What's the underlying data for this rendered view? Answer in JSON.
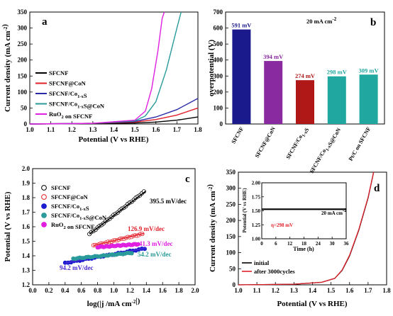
{
  "chart_data": [
    {
      "panel": "a",
      "type": "line",
      "xlabel": "Potential (V vs RHE)",
      "ylabel": "Current density (mA cm-2)",
      "xlim": [
        1.0,
        1.8
      ],
      "ylim": [
        0,
        350
      ],
      "xticks": [
        "1.0",
        "1.1",
        "1.2",
        "1.3",
        "1.4",
        "1.5",
        "1.6",
        "1.7",
        "1.8"
      ],
      "yticks": [
        "0",
        "50",
        "100",
        "150",
        "200",
        "250",
        "300",
        "350"
      ],
      "legend": "bottom-left",
      "series": [
        {
          "name": "SFCNF",
          "color": "#000000",
          "x": [
            1.0,
            1.3,
            1.5,
            1.6,
            1.7,
            1.8
          ],
          "y": [
            0,
            1,
            3,
            6,
            12,
            22
          ]
        },
        {
          "name": "SFCNF@CoN",
          "color": "#e0202a",
          "x": [
            1.0,
            1.3,
            1.5,
            1.6,
            1.7,
            1.8
          ],
          "y": [
            0,
            2,
            6,
            14,
            28,
            50
          ]
        },
        {
          "name": "SFCNF/Co1-xS",
          "color": "#2a2aa8",
          "x": [
            1.0,
            1.3,
            1.5,
            1.6,
            1.7,
            1.8
          ],
          "y": [
            0,
            2,
            8,
            22,
            45,
            80
          ]
        },
        {
          "name": "SFCNF/Co1-xS@CoN",
          "color": "#2a9a9a",
          "x": [
            1.0,
            1.3,
            1.5,
            1.55,
            1.6,
            1.65,
            1.7,
            1.72
          ],
          "y": [
            0,
            2,
            10,
            25,
            70,
            170,
            300,
            350
          ]
        },
        {
          "name": "RuO2 on SFCNF",
          "color": "#e020e0",
          "x": [
            1.0,
            1.3,
            1.5,
            1.55,
            1.58,
            1.61,
            1.63,
            1.64
          ],
          "y": [
            0,
            2,
            12,
            40,
            110,
            230,
            330,
            350
          ]
        }
      ]
    },
    {
      "panel": "b",
      "type": "bar",
      "ylabel": "overpotential (V)",
      "annotation": "20 mA cm-2",
      "ylim": [
        0,
        700
      ],
      "yticks": [
        "0",
        "100",
        "200",
        "300",
        "400",
        "500",
        "600",
        "700"
      ],
      "categories": [
        "SFCNF",
        "SFCNF@CoN",
        "SFCNF/Co1-xS",
        "SFCNF/Co1-xS@CoN",
        "Pt/C on SFCNF"
      ],
      "values": [
        591,
        394,
        274,
        298,
        309
      ],
      "data_labels": [
        "591 mV",
        "394 mV",
        "274 mV",
        "298 mV",
        "309 mV"
      ],
      "colors": [
        "#1a1a8c",
        "#8a2aa0",
        "#b01818",
        "#20a8a0",
        "#20a8a0"
      ]
    },
    {
      "panel": "c",
      "type": "scatter",
      "xlabel": "log(|j /mA cm-2|)",
      "ylabel": "Potential (V vs RHE)",
      "xlim": [
        0.0,
        2.0
      ],
      "ylim": [
        1.2,
        2.0
      ],
      "xticks": [
        "0.0",
        "0.2",
        "0.4",
        "0.6",
        "0.8",
        "1.0",
        "1.2",
        "1.4",
        "1.6",
        "1.8",
        "2.0"
      ],
      "yticks": [
        "1.2",
        "1.3",
        "1.4",
        "1.5",
        "1.6",
        "1.7",
        "1.8",
        "1.9",
        "2.0"
      ],
      "legend": "top-left",
      "series": [
        {
          "name": "SFCNF",
          "color": "#000000",
          "fit_color": "#000000",
          "slope_label": "395.5 mV/dec",
          "x": [
            0.7,
            1.37
          ],
          "y": [
            1.55,
            1.84
          ]
        },
        {
          "name": "SFCNF@CoN",
          "color": "#e0202a",
          "fit_color": "#e0202a",
          "slope_label": "126.9 mV/dec",
          "x": [
            0.75,
            1.35
          ],
          "y": [
            1.47,
            1.55
          ]
        },
        {
          "name": "SFCNF/Co1-xS",
          "color": "#1a1ad0",
          "fit_color": "#4a2ad0",
          "slope_label": "94.2 mV/dec",
          "x": [
            0.4,
            1.38
          ],
          "y": [
            1.35,
            1.45
          ]
        },
        {
          "name": "SFCNF/Co1-xS@CoN",
          "color": "#2a9a9a",
          "fit_color": "#2a9a9a",
          "slope_label": "54.2 mV/dec",
          "x": [
            0.5,
            1.22
          ],
          "y": [
            1.38,
            1.42
          ]
        },
        {
          "name": "RuO2 on SFCNF",
          "color": "#e020e0",
          "fit_color": "#e020e0",
          "slope_label": "41.3 mV/dec",
          "x": [
            0.8,
            1.3
          ],
          "y": [
            1.46,
            1.48
          ]
        }
      ]
    },
    {
      "panel": "d",
      "type": "line",
      "xlabel": "Potential (V vs RHE)",
      "ylabel": "Current density (mA cm-2)",
      "xlim": [
        1.0,
        1.8
      ],
      "ylim": [
        0,
        350
      ],
      "xticks": [
        "1.0",
        "1.1",
        "1.2",
        "1.3",
        "1.4",
        "1.5",
        "1.6",
        "1.7",
        "1.8"
      ],
      "yticks": [
        "0",
        "50",
        "100",
        "150",
        "200",
        "250",
        "300",
        "350"
      ],
      "legend": "bottom-left",
      "series": [
        {
          "name": "initial",
          "color": "#000000",
          "x": [
            1.0,
            1.3,
            1.45,
            1.52,
            1.56,
            1.6,
            1.65,
            1.7,
            1.73
          ],
          "y": [
            0,
            2,
            8,
            20,
            45,
            90,
            170,
            270,
            350
          ]
        },
        {
          "name": "after 3000cycles",
          "color": "#e0202a",
          "x": [
            1.0,
            1.3,
            1.45,
            1.52,
            1.56,
            1.6,
            1.65,
            1.7,
            1.73
          ],
          "y": [
            0,
            2,
            8,
            20,
            46,
            92,
            172,
            272,
            350
          ]
        }
      ],
      "inset": {
        "xlabel": "Time (h)",
        "ylabel": "Potential (V vs RHE)",
        "xlim": [
          0,
          36
        ],
        "ylim": [
          1.0,
          2.0
        ],
        "xticks": [
          "0",
          "6",
          "12",
          "18",
          "24",
          "30",
          "36"
        ],
        "yticks": [
          "1.00",
          "1.25",
          "1.50",
          "1.75",
          "2.00"
        ],
        "annotation": "20 mA cm-2",
        "eta_label": "η=298 mV",
        "x": [
          0,
          36
        ],
        "y": [
          1.528,
          1.528
        ]
      }
    }
  ]
}
